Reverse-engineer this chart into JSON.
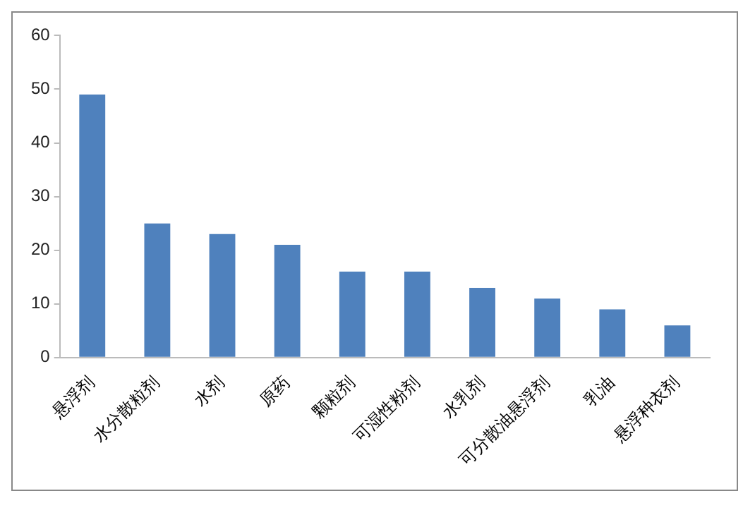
{
  "chart_data": {
    "type": "bar",
    "categories": [
      "悬浮剂",
      "水分散粒剂",
      "水剂",
      "原药",
      "颗粒剂",
      "可湿性粉剂",
      "水乳剂",
      "可分散油悬浮剂",
      "乳油",
      "悬浮种衣剂"
    ],
    "values": [
      49,
      25,
      23,
      21,
      16,
      16,
      13,
      11,
      9,
      6
    ],
    "color": "#4f81bd",
    "ylim": [
      0,
      60
    ],
    "yticks": [
      0,
      10,
      20,
      30,
      40,
      50,
      60
    ],
    "grid": false,
    "legend": false
  }
}
